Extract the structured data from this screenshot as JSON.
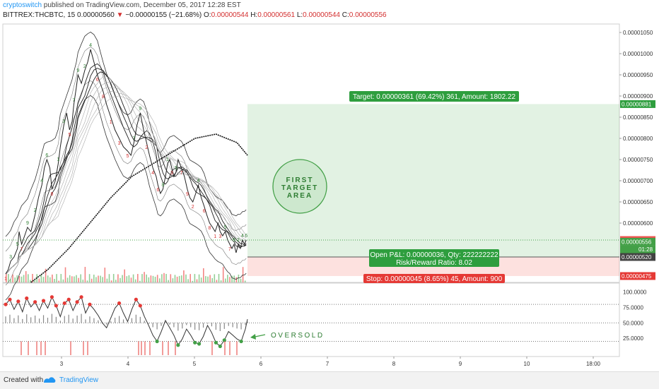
{
  "header": {
    "author": "cryptoswitch",
    "published": "published on TradingView.com, December 05, 2017 12:28 EST",
    "symbol": "BITTREX:THCBTC, 15",
    "last": "0.00000560",
    "arrow": "▼",
    "change": "−0.00000155 (−21.68%)",
    "o_label": "O:",
    "o_value": "0.00000544",
    "h_label": "H:",
    "h_value": "0.00000561",
    "l_label": "L:",
    "l_value": "0.00000544",
    "c_label": "C:",
    "c_value": "0.00000556"
  },
  "annotations": {
    "target": "Target: 0.00000361 (69.42%) 361, Amount: 1802.22",
    "open_pl": "Open P&L: 0.00000036, Qty: 222222222",
    "rr": "Risk/Reward Ratio: 8.02",
    "stop": "Stop: 0.00000045 (8.65%) 45, Amount: 900",
    "circle_lines": [
      "FIRST",
      "TARGET",
      "AREA"
    ],
    "oversold": "OVERSOLD"
  },
  "price_axis": {
    "ticks": [
      "0.00001050",
      "0.00001000",
      "0.00000950",
      "0.00000900",
      "0.00000850",
      "0.00000800",
      "0.00000750",
      "0.00000700",
      "0.00000650",
      "0.00000600"
    ],
    "tick_values": [
      1.05e-05,
      1e-05,
      9.5e-06,
      9e-06,
      8.5e-06,
      8e-06,
      7.5e-06,
      7e-06,
      6.5e-06,
      6e-06
    ],
    "badges": [
      {
        "label": "0.00000881",
        "value": 8.81e-06,
        "color": "#2e9e3e"
      },
      {
        "label": "0.00000560",
        "value": 5.6e-06,
        "color": "#ef5350"
      },
      {
        "label": "0.00000556",
        "value": 5.56e-06,
        "color": "#43a047"
      },
      {
        "label": "01:28",
        "value": 5.38e-06,
        "color": "#43a047"
      },
      {
        "label": "0.00000520",
        "value": 5.2e-06,
        "color": "#424242"
      },
      {
        "label": "0.00000475",
        "value": 4.75e-06,
        "color": "#e53935"
      }
    ]
  },
  "osc_axis": {
    "ticks": [
      "100.0000",
      "75.0000",
      "50.0000",
      "25.0000"
    ],
    "tick_values": [
      100,
      75,
      50,
      25
    ]
  },
  "time_axis": {
    "labels": [
      "3",
      "4",
      "5",
      "6",
      "7",
      "8",
      "9",
      "10",
      "18:00"
    ]
  },
  "chart_data": {
    "type": "line",
    "title": "BITTREX:THCBTC, 15",
    "price_range": [
      4.6e-06,
      1.07e-05
    ],
    "close_series": {
      "x": [
        0.0,
        0.06,
        0.12,
        0.2,
        0.28,
        0.32,
        0.38,
        0.45,
        0.52,
        0.6,
        0.7,
        0.78,
        0.86,
        0.92,
        0.98,
        1.05,
        1.1,
        1.18,
        1.25,
        1.3,
        1.38,
        1.45,
        1.52,
        1.58,
        1.62,
        1.68,
        1.72,
        1.8,
        1.88,
        1.95,
        2.02,
        2.1,
        2.18,
        2.25,
        2.32,
        2.4,
        2.5,
        2.6,
        2.7,
        2.8,
        2.9,
        2.98,
        3.05,
        3.12,
        3.2,
        3.28,
        3.35,
        3.42,
        3.5,
        3.58,
        3.62,
        3.68,
        3.74,
        3.8,
        3.85,
        3.9,
        3.95,
        4.0,
        4.05,
        4.1,
        4.18,
        4.25,
        4.32,
        4.38,
        4.45,
        4.52,
        4.58,
        4.65,
        4.72,
        4.78,
        4.85,
        4.92,
        4.98,
        5.05,
        5.1,
        5.16,
        5.22,
        5.28,
        5.33,
        5.38,
        5.43,
        5.48,
        5.53,
        5.58,
        5.63,
        5.68,
        5.72
      ],
      "values": [
        4.8e-06,
        4.9e-06,
        5.1e-06,
        5.2e-06,
        5.4e-06,
        5.8e-06,
        5.5e-06,
        5.7e-06,
        5.9e-06,
        5.8e-06,
        6.2e-06,
        6.6e-06,
        6.9e-06,
        7.3e-06,
        7.5e-06,
        7.3e-06,
        6.8e-06,
        7e-06,
        7.4e-06,
        7.8e-06,
        8.3e-06,
        8.6e-06,
        8.2e-06,
        8.4e-06,
        8.8e-06,
        9.2e-06,
        9.5e-06,
        9.3e-06,
        9.6e-06,
        9.8e-06,
        1.01e-05,
        9.8e-06,
        9.5e-06,
        9.3e-06,
        9.1e-06,
        8.8e-06,
        8.5e-06,
        8.2e-06,
        8e-06,
        7.8e-06,
        7.7e-06,
        7.6e-06,
        7.9e-06,
        8.3e-06,
        8.6e-06,
        8.2e-06,
        7.9e-06,
        7.6e-06,
        7.3e-06,
        7.1e-06,
        6.9e-06,
        6.7e-06,
        6.8e-06,
        7.1e-06,
        7.4e-06,
        7.5e-06,
        7.3e-06,
        7.1e-06,
        7.2e-06,
        7.5e-06,
        7.3e-06,
        7.1e-06,
        6.8e-06,
        6.6e-06,
        6.5e-06,
        6.7e-06,
        6.9e-06,
        6.6e-06,
        6.4e-06,
        6.2e-06,
        6e-06,
        5.9e-06,
        5.8e-06,
        6e-06,
        5.8e-06,
        5.7e-06,
        5.8e-06,
        5.6e-06,
        5.5e-06,
        5.4e-06,
        5.5e-06,
        5.3e-06,
        5.5e-06,
        5.4e-06,
        5.6e-06,
        5.5e-06,
        5.6e-06
      ]
    },
    "moving_average": {
      "x": [
        0.6,
        1.0,
        1.5,
        2.0,
        2.5,
        3.0,
        3.5,
        4.0,
        4.5,
        5.0,
        5.5,
        5.75
      ],
      "values": [
        4.6e-06,
        4.9e-06,
        5.4e-06,
        6e-06,
        6.6e-06,
        7.1e-06,
        7.4e-06,
        7.7e-06,
        8e-06,
        8.1e-06,
        7.9e-06,
        7.6e-06
      ]
    },
    "position": {
      "target": 8.81e-06,
      "entry": 5.2e-06,
      "stop": 4.75e-06,
      "target_pct": "69.42%",
      "stop_pct": "8.65%",
      "rr": 8.02,
      "qty": 222222222
    },
    "oscillator": {
      "range": [
        0,
        110
      ],
      "overbought": 80,
      "midline": 50,
      "oversold": 20,
      "x": [
        0.0,
        0.1,
        0.2,
        0.3,
        0.4,
        0.5,
        0.6,
        0.7,
        0.8,
        0.9,
        1.0,
        1.1,
        1.2,
        1.3,
        1.4,
        1.5,
        1.6,
        1.7,
        1.8,
        1.9,
        2.0,
        2.1,
        2.2,
        2.3,
        2.4,
        2.5,
        2.6,
        2.7,
        2.8,
        2.9,
        3.0,
        3.1,
        3.2,
        3.3,
        3.4,
        3.5,
        3.6,
        3.7,
        3.8,
        3.9,
        4.0,
        4.1,
        4.2,
        4.3,
        4.4,
        4.5,
        4.6,
        4.7,
        4.8,
        4.9,
        5.0,
        5.1,
        5.2,
        5.3,
        5.4,
        5.5,
        5.6,
        5.7,
        5.75
      ],
      "values": [
        80,
        88,
        72,
        85,
        68,
        90,
        76,
        84,
        70,
        86,
        74,
        92,
        78,
        60,
        82,
        88,
        70,
        84,
        92,
        66,
        80,
        72,
        62,
        50,
        42,
        58,
        74,
        82,
        66,
        52,
        72,
        88,
        78,
        60,
        46,
        30,
        20,
        36,
        54,
        42,
        30,
        14,
        24,
        40,
        30,
        18,
        16,
        28,
        46,
        34,
        18,
        12,
        22,
        36,
        30,
        24,
        20,
        40,
        56
      ]
    },
    "x_axis_labels": [
      "3",
      "4",
      "5",
      "6",
      "7",
      "8",
      "9",
      "10",
      "18:00"
    ]
  },
  "footer": {
    "created": "Created with",
    "brand": "TradingView"
  }
}
